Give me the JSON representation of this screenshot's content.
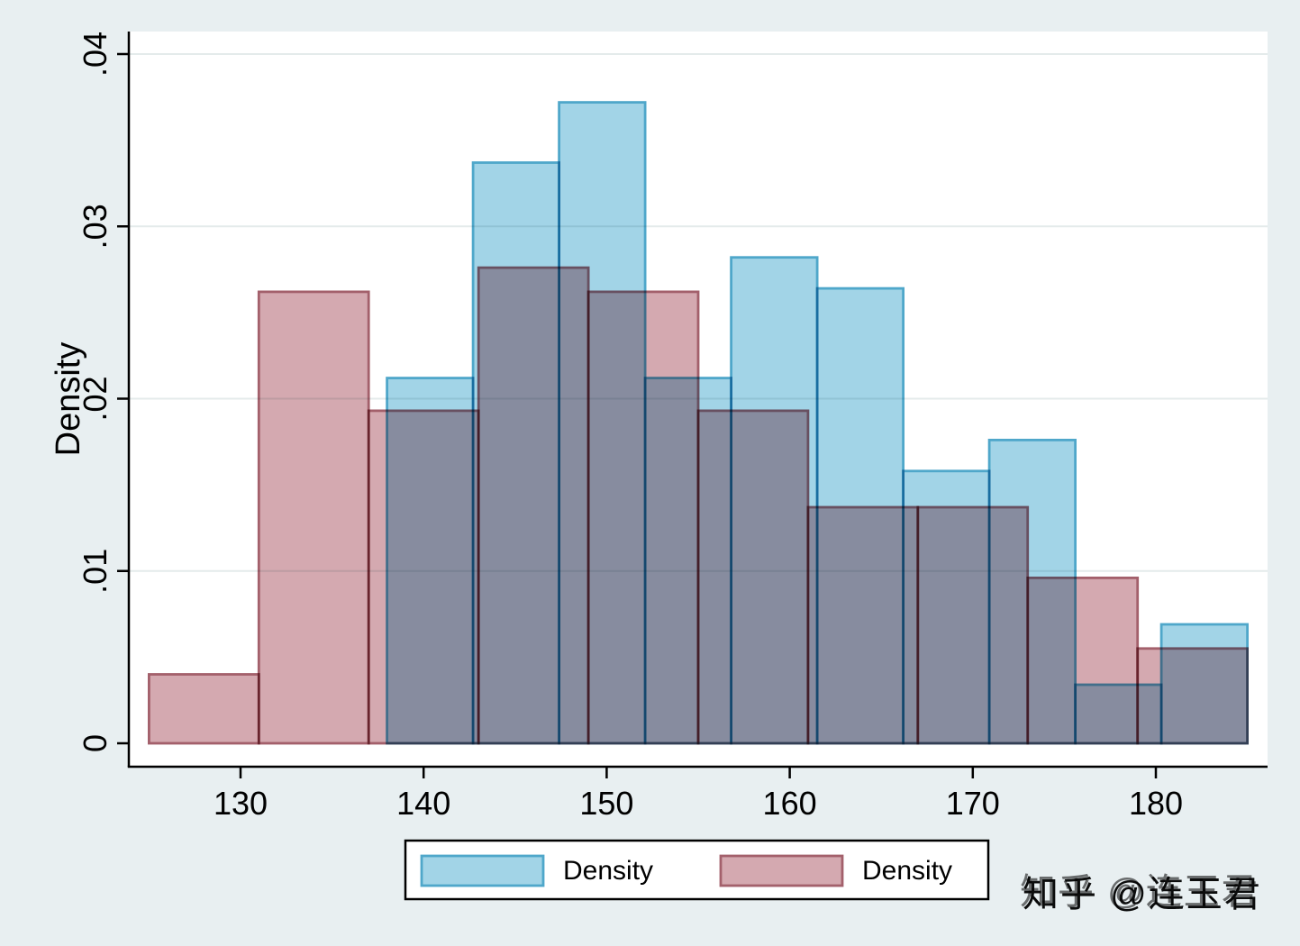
{
  "figure": {
    "background_color": "#e8eff1",
    "plot_background_color": "#ffffff",
    "gridline_color": "#e4ebeb",
    "axis_color": "#000000",
    "y_axis_title": "Density",
    "watermark": {
      "text": "知乎 @连玉君",
      "color": "#ffffff",
      "shadow_color": "#96a3a8"
    },
    "legend": {
      "background": "#ffffff",
      "border_color": "#000000",
      "items": [
        {
          "label": "Density",
          "series": "blue"
        },
        {
          "label": "Density",
          "series": "pink"
        }
      ]
    }
  },
  "chart_data": {
    "type": "bar",
    "subtype": "overlaid density histograms",
    "title": "",
    "xlabel": "",
    "ylabel": "Density",
    "grid": true,
    "legend_position": "bottom-center",
    "x_tick_values": [
      130,
      140,
      150,
      160,
      170,
      180
    ],
    "x_tick_labels": [
      "130",
      "140",
      "150",
      "160",
      "170",
      "180"
    ],
    "y_tick_values": [
      0,
      0.01,
      0.02,
      0.03,
      0.04
    ],
    "y_tick_labels": [
      "0",
      ".01",
      ".02",
      ".03",
      ".04"
    ],
    "xlim": [
      123.9,
      186.1
    ],
    "ylim": [
      -0.0014,
      0.0413
    ],
    "series": [
      {
        "name": "Density",
        "color_key": "blue",
        "fill": "#a2d4e7",
        "border": "#4fa7ca",
        "bin_edges": [
          138,
          142.7,
          147.4,
          152.1,
          156.8,
          161.5,
          166.2,
          170.9,
          175.6,
          180.3,
          185
        ],
        "densities": [
          0.0212,
          0.0337,
          0.0372,
          0.0212,
          0.0282,
          0.0264,
          0.0158,
          0.0176,
          0.0034,
          0.0069
        ]
      },
      {
        "name": "Density",
        "color_key": "pink",
        "fill": "#d4a9b0",
        "border": "#a3606b",
        "bin_edges": [
          125,
          131,
          137,
          143,
          149,
          155,
          161,
          167,
          173,
          179,
          185
        ],
        "densities": [
          0.004,
          0.0262,
          0.0193,
          0.0276,
          0.0262,
          0.0193,
          0.0137,
          0.0137,
          0.0096,
          0.0055
        ]
      }
    ]
  }
}
